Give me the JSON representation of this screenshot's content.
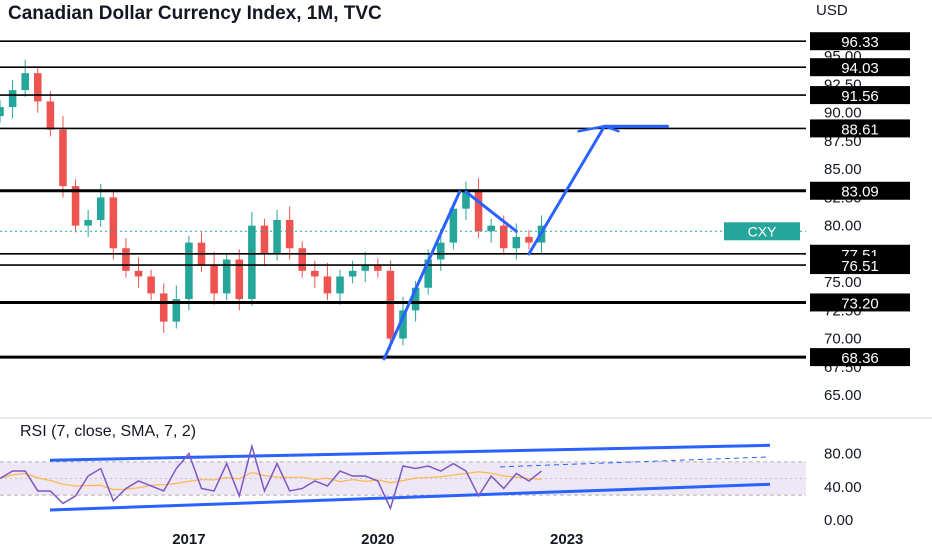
{
  "header": {
    "title": "Canadian Dollar Currency Index, 1M, TVC",
    "currency": "USD",
    "symbol_badge": "CXY"
  },
  "colors": {
    "up": "#26a69a",
    "down": "#ef5350",
    "trendline": "#2962ff",
    "level_line": "#000000",
    "rsi_line": "#7e57c2",
    "rsi_ma": "#ffb74d",
    "rsi_band": "#ede7f6",
    "badge": "#26a69a"
  },
  "chart_data": [
    {
      "type": "candlestick",
      "title": "Canadian Dollar Currency Index, 1M, TVC",
      "yunit": "USD",
      "ylim": [
        63.5,
        97.5
      ],
      "y_ticks": [
        "95.00",
        "92.50",
        "90.00",
        "87.50",
        "85.00",
        "82.50",
        "80.00",
        "75.00",
        "72.50",
        "70.00",
        "67.50",
        "65.00"
      ],
      "x_ticks": [
        "2017",
        "2020",
        "2023"
      ],
      "x_tick_values": [
        2017,
        2020,
        2023
      ],
      "xlim": [
        2014.0,
        2026.8
      ],
      "approximate_closes": [
        {
          "x": 2014.0,
          "y": 90.5
        },
        {
          "x": 2014.2,
          "y": 92.0
        },
        {
          "x": 2014.4,
          "y": 93.5
        },
        {
          "x": 2014.6,
          "y": 91.0
        },
        {
          "x": 2014.8,
          "y": 88.5
        },
        {
          "x": 2015.0,
          "y": 83.5
        },
        {
          "x": 2015.2,
          "y": 80.0
        },
        {
          "x": 2015.4,
          "y": 80.5
        },
        {
          "x": 2015.6,
          "y": 82.5
        },
        {
          "x": 2015.8,
          "y": 78.0
        },
        {
          "x": 2016.0,
          "y": 76.0
        },
        {
          "x": 2016.2,
          "y": 75.5
        },
        {
          "x": 2016.4,
          "y": 74.0
        },
        {
          "x": 2016.6,
          "y": 71.5
        },
        {
          "x": 2016.8,
          "y": 73.5
        },
        {
          "x": 2017.0,
          "y": 78.5
        },
        {
          "x": 2017.2,
          "y": 76.5
        },
        {
          "x": 2017.4,
          "y": 74.0
        },
        {
          "x": 2017.6,
          "y": 77.0
        },
        {
          "x": 2017.8,
          "y": 73.5
        },
        {
          "x": 2018.0,
          "y": 80.0
        },
        {
          "x": 2018.2,
          "y": 77.5
        },
        {
          "x": 2018.4,
          "y": 80.5
        },
        {
          "x": 2018.6,
          "y": 78.0
        },
        {
          "x": 2018.8,
          "y": 76.0
        },
        {
          "x": 2019.0,
          "y": 75.5
        },
        {
          "x": 2019.2,
          "y": 74.0
        },
        {
          "x": 2019.4,
          "y": 75.5
        },
        {
          "x": 2019.6,
          "y": 76.0
        },
        {
          "x": 2019.8,
          "y": 76.5
        },
        {
          "x": 2020.0,
          "y": 76.0
        },
        {
          "x": 2020.2,
          "y": 70.0
        },
        {
          "x": 2020.4,
          "y": 72.5
        },
        {
          "x": 2020.6,
          "y": 74.5
        },
        {
          "x": 2020.8,
          "y": 77.0
        },
        {
          "x": 2021.0,
          "y": 78.5
        },
        {
          "x": 2021.2,
          "y": 81.5
        },
        {
          "x": 2021.4,
          "y": 83.0
        },
        {
          "x": 2021.6,
          "y": 79.5
        },
        {
          "x": 2021.8,
          "y": 80.0
        },
        {
          "x": 2022.0,
          "y": 78.0
        },
        {
          "x": 2022.2,
          "y": 79.0
        },
        {
          "x": 2022.4,
          "y": 78.5
        },
        {
          "x": 2022.6,
          "y": 80.0
        }
      ],
      "horizontal_levels": [
        "96.33",
        "94.03",
        "91.56",
        "88.61",
        "83.09",
        "77.51",
        "76.51",
        "73.20",
        "68.36"
      ],
      "current_price_badge": {
        "label": "CXY",
        "y": 79.5
      },
      "trendlines": [
        {
          "from": {
            "x": 2020.1,
            "y": 68.2
          },
          "to": {
            "x": 2021.3,
            "y": 83.0
          }
        },
        {
          "from": {
            "x": 2021.4,
            "y": 83.0
          },
          "to": {
            "x": 2022.2,
            "y": 79.5
          }
        },
        {
          "from": {
            "x": 2022.4,
            "y": 77.5
          },
          "to": {
            "x": 2023.6,
            "y": 88.8
          }
        },
        {
          "from": {
            "x": 2023.6,
            "y": 88.8
          },
          "to": {
            "x": 2024.6,
            "y": 88.8
          }
        }
      ]
    },
    {
      "type": "line",
      "title": "RSI (7, close, SMA, 7, 2)",
      "ylim": [
        0,
        100
      ],
      "y_ticks": [
        "80.00",
        "40.00",
        "0.00"
      ],
      "band": [
        30,
        70
      ]
    }
  ]
}
